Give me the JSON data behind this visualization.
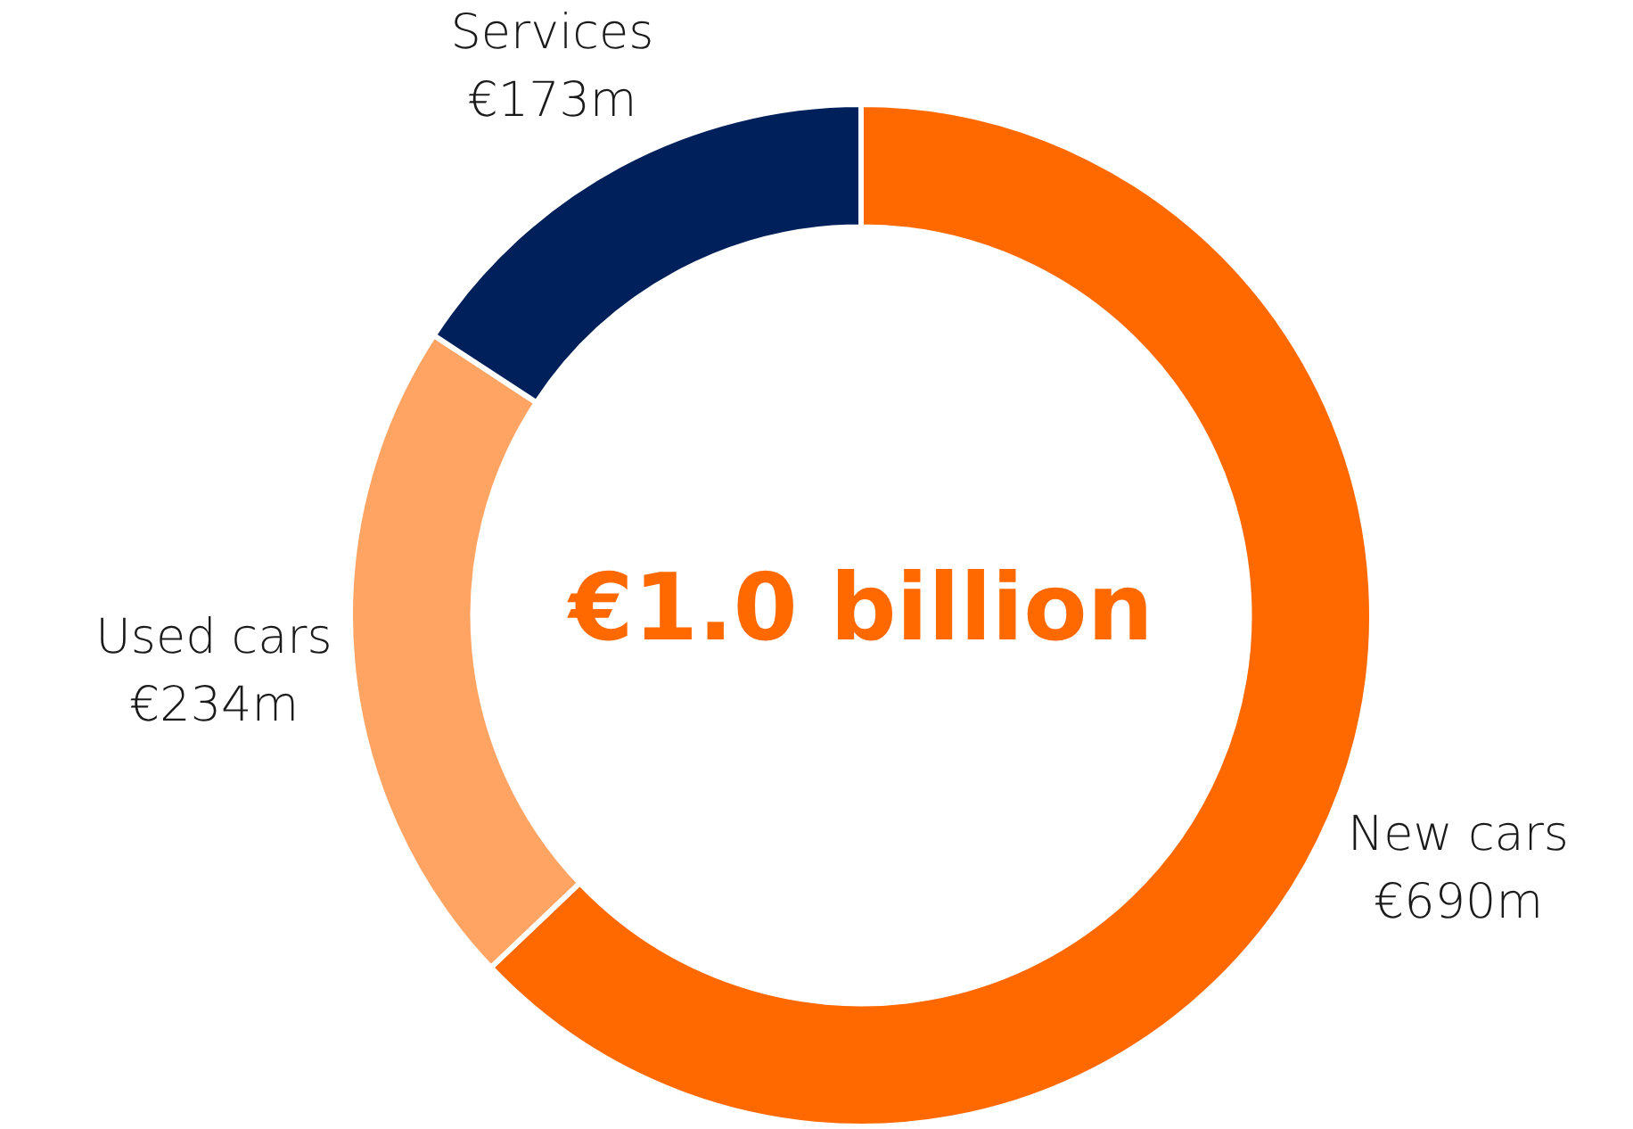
{
  "chart_data": {
    "type": "donut",
    "categories": [
      "New cars",
      "Used cars",
      "Services"
    ],
    "values": [
      690,
      234,
      173
    ],
    "colors": [
      "#ff6900",
      "#ffa463",
      "#00205b"
    ],
    "value_labels": [
      "€690m",
      "€234m",
      "€173m"
    ],
    "annotations": [
      "€1.0 billion"
    ]
  }
}
